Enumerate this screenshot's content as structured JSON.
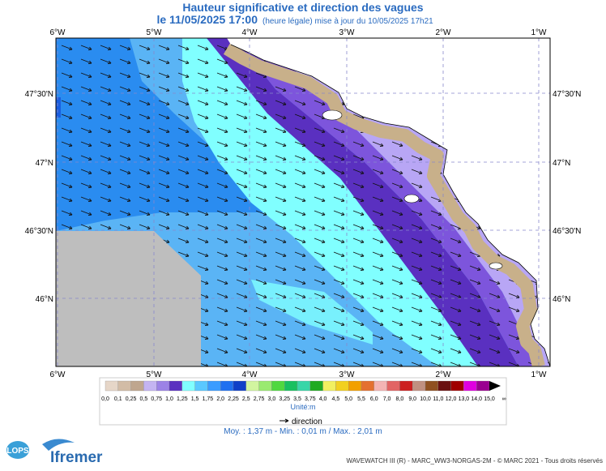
{
  "header": {
    "title": "Hauteur significative et direction des vagues",
    "date": "le 11/05/2025 17:00",
    "note": "(heure légale) mise à jour du 10/05/2025 17h21"
  },
  "map": {
    "lon_labels": [
      "6°W",
      "5°W",
      "4°W",
      "3°W",
      "2°W",
      "1°W"
    ],
    "lat_labels": [
      "47°30'N",
      "47°N",
      "46°30'N",
      "46°N"
    ]
  },
  "legend": {
    "labels": [
      "0,0",
      "0,1",
      "0,25",
      "0,5",
      "0,75",
      "1,0",
      "1,25",
      "1,5",
      "1,75",
      "2,0",
      "2,25",
      "2,5",
      "2,75",
      "3,0",
      "3,25",
      "3,5",
      "3,75",
      "4,0",
      "4,5",
      "5,0",
      "5,5",
      "6,0",
      "7,0",
      "8,0",
      "9,0",
      "10,0",
      "11,0",
      "12,0",
      "13,0",
      "14,0",
      "15,0",
      "∞"
    ],
    "colors": [
      "#e6d6c8",
      "#d2bca6",
      "#bfa68e",
      "#c4b4f2",
      "#9c82e6",
      "#5a30c0",
      "#80ffff",
      "#5ac8ff",
      "#3a9cff",
      "#2070f0",
      "#1040c8",
      "#d2f5a0",
      "#9aea70",
      "#50d840",
      "#18c060",
      "#38d6a8",
      "#20aa20",
      "#f2f060",
      "#f2d020",
      "#f2a000",
      "#e47030",
      "#f4b4b4",
      "#e26464",
      "#cc2020",
      "#c09080",
      "#905020",
      "#6a1010",
      "#a00000",
      "#e000e0",
      "#9a0090",
      "#000000"
    ],
    "unit": "Unité:m",
    "direction": "direction",
    "stats": "Moy. : 1,37 m   -   Min. : 0,01 m / Max. : 2,01 m"
  },
  "footer": {
    "credits": "WAVEWATCH III (R) - MARC_WW3-NORGAS-2M - © MARC 2021 - Tous droits réservés",
    "lops": "LOPS",
    "ifremer": "Ifremer"
  }
}
